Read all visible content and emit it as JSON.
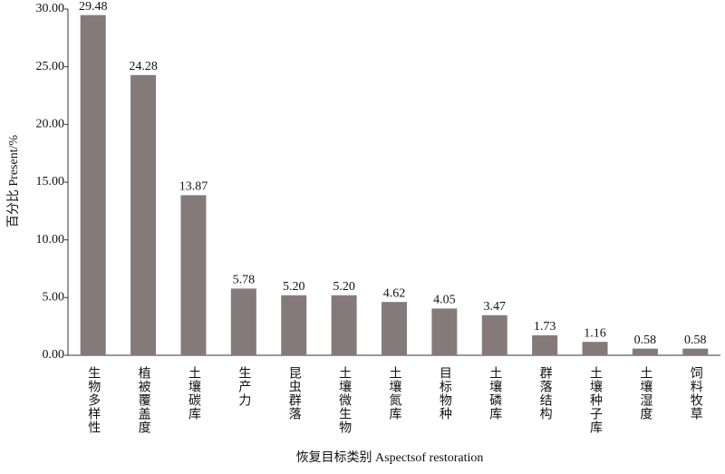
{
  "chart_data": {
    "type": "bar",
    "x_label": "恢复目标类别 Aspectsof restoration",
    "y_label": "百分比 Present/%",
    "categories": [
      "生物多样性",
      "植被覆盖度",
      "土壤碳库",
      "生产力",
      "昆虫群落",
      "土壤微生物",
      "土壤氮库",
      "目标物种",
      "土壤磷库",
      "群落结构",
      "土壤种子库",
      "土壤湿度",
      "饲料牧草"
    ],
    "values": [
      29.48,
      24.28,
      13.87,
      5.78,
      5.2,
      5.2,
      4.62,
      4.05,
      3.47,
      1.73,
      1.16,
      0.58,
      0.58
    ],
    "value_labels": [
      "29.48",
      "24.28",
      "13.87",
      "5.78",
      "5.20",
      "5.20",
      "4.62",
      "4.05",
      "3.47",
      "1.73",
      "1.16",
      "0.58",
      "0.58"
    ],
    "color": "#857a7a",
    "ylim": [
      0,
      30
    ],
    "yticks": [
      {
        "value": 0,
        "label": "0.00"
      },
      {
        "value": 5,
        "label": "5.00"
      },
      {
        "value": 10,
        "label": "10.00"
      },
      {
        "value": 15,
        "label": "15.00"
      },
      {
        "value": 20,
        "label": "20.00"
      },
      {
        "value": 25,
        "label": "25.00"
      },
      {
        "value": 30,
        "label": "30.00"
      }
    ],
    "grid": false
  }
}
